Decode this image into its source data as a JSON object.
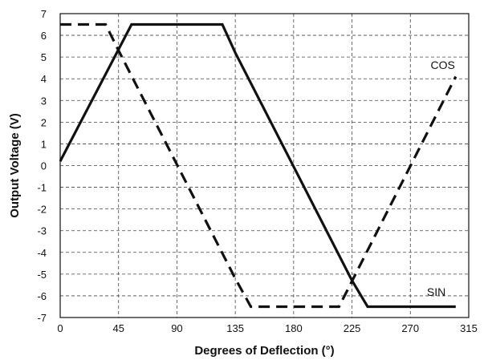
{
  "chart_data": {
    "type": "line",
    "xlabel": "Degrees of Deflection (°)",
    "ylabel": "Output Voltage (V)",
    "xlim": [
      0,
      315
    ],
    "ylim": [
      -7,
      7
    ],
    "xticks": [
      0,
      45,
      90,
      135,
      180,
      225,
      270,
      315
    ],
    "yticks": [
      7,
      6,
      5,
      4,
      3,
      2,
      1,
      0,
      -1,
      -2,
      -3,
      -4,
      -5,
      -6,
      -7
    ],
    "grid": true,
    "series": [
      {
        "name": "SIN",
        "style": "solid",
        "color": "#111111",
        "points": [
          [
            0,
            0.2
          ],
          [
            55,
            6.5
          ],
          [
            125,
            6.5
          ],
          [
            135,
            5.2
          ],
          [
            225,
            -5.3
          ],
          [
            237,
            -6.5
          ],
          [
            305,
            -6.5
          ]
        ]
      },
      {
        "name": "COS",
        "style": "dashed",
        "color": "#111111",
        "points": [
          [
            0,
            6.5
          ],
          [
            35,
            6.5
          ],
          [
            45,
            5.3
          ],
          [
            135,
            -5.2
          ],
          [
            147,
            -6.5
          ],
          [
            215,
            -6.5
          ],
          [
            305,
            4.1
          ]
        ]
      }
    ]
  }
}
